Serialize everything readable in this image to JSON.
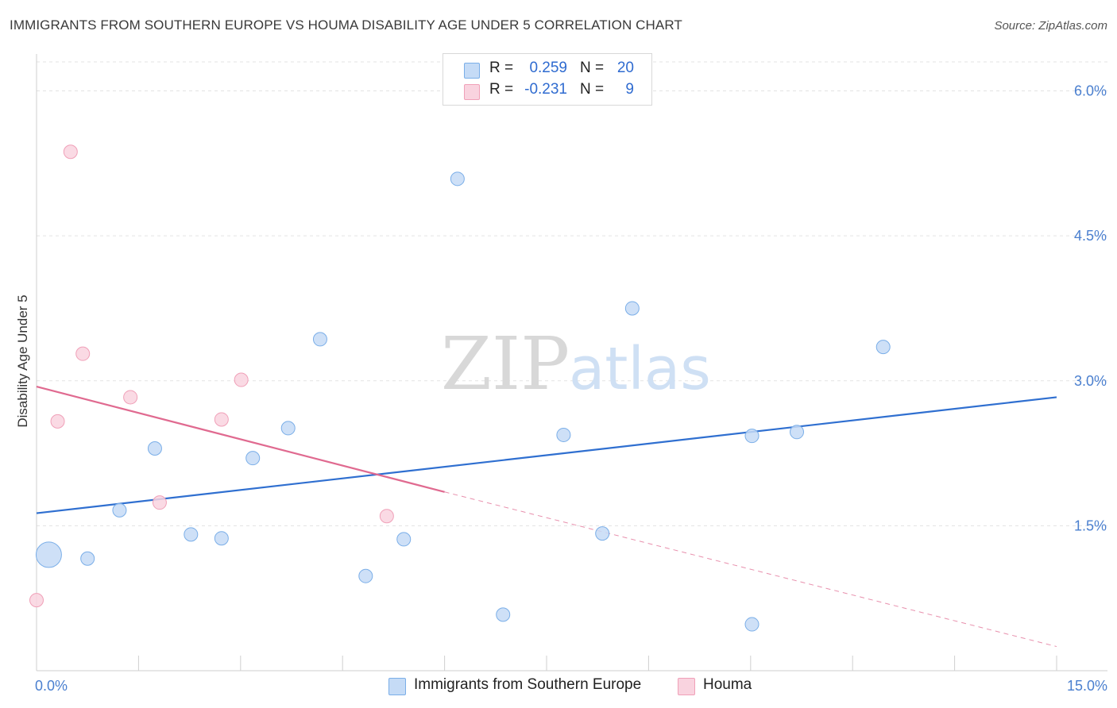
{
  "title": "IMMIGRANTS FROM SOUTHERN EUROPE VS HOUMA DISABILITY AGE UNDER 5 CORRELATION CHART",
  "source": "Source: ZipAtlas.com",
  "watermark": {
    "zip": "ZIP",
    "atlas": "atlas"
  },
  "legend": {
    "r_label": "R =",
    "n_label": "N =",
    "rows": [
      {
        "series": "Immigrants from Southern Europe",
        "r": "0.259",
        "n": "20"
      },
      {
        "series": "Houma",
        "r": "-0.231",
        "n": "9"
      }
    ]
  },
  "chart_data": {
    "type": "scatter",
    "title": "IMMIGRANTS FROM SOUTHERN EUROPE VS HOUMA DISABILITY AGE UNDER 5 CORRELATION CHART",
    "xlabel": "",
    "ylabel": "Disability Age Under 5",
    "xlim": [
      0,
      15
    ],
    "ylim": [
      0,
      6.3
    ],
    "x_tick_labels": [
      {
        "value": 0,
        "label": "0.0%"
      },
      {
        "value": 15,
        "label": "15.0%"
      }
    ],
    "y_ticks": [
      {
        "value": 1.5,
        "label": "1.5%"
      },
      {
        "value": 3.0,
        "label": "3.0%"
      },
      {
        "value": 4.5,
        "label": "4.5%"
      },
      {
        "value": 6.0,
        "label": "6.0%"
      }
    ],
    "x_minor_ticks": [
      0,
      1.5,
      3.0,
      4.5,
      6.0,
      7.5,
      9.0,
      10.5,
      12.0,
      13.5,
      15.0
    ],
    "grid": true,
    "series": [
      {
        "name": "Immigrants from Southern Europe",
        "color": "#7aaee8",
        "fill": "#c5dbf6",
        "points": [
          {
            "x": 0.18,
            "y": 1.2,
            "size": "large"
          },
          {
            "x": 0.75,
            "y": 1.16
          },
          {
            "x": 1.22,
            "y": 1.66
          },
          {
            "x": 1.74,
            "y": 2.3
          },
          {
            "x": 2.27,
            "y": 1.41
          },
          {
            "x": 2.72,
            "y": 1.37
          },
          {
            "x": 3.18,
            "y": 2.2
          },
          {
            "x": 3.7,
            "y": 2.51
          },
          {
            "x": 4.17,
            "y": 3.43
          },
          {
            "x": 4.84,
            "y": 0.98
          },
          {
            "x": 5.4,
            "y": 1.36
          },
          {
            "x": 6.19,
            "y": 5.09
          },
          {
            "x": 6.86,
            "y": 0.58
          },
          {
            "x": 7.75,
            "y": 2.44
          },
          {
            "x": 8.32,
            "y": 1.42
          },
          {
            "x": 8.76,
            "y": 3.75
          },
          {
            "x": 10.52,
            "y": 2.43
          },
          {
            "x": 10.52,
            "y": 0.48
          },
          {
            "x": 11.18,
            "y": 2.47
          },
          {
            "x": 12.45,
            "y": 3.35
          }
        ],
        "trend": {
          "x0": 0,
          "y0": 1.63,
          "x1": 15,
          "y1": 2.83
        }
      },
      {
        "name": "Houma",
        "color": "#f0a0b8",
        "fill": "#f9d3df",
        "points": [
          {
            "x": 0.0,
            "y": 0.73
          },
          {
            "x": 0.31,
            "y": 2.58
          },
          {
            "x": 0.5,
            "y": 5.37
          },
          {
            "x": 0.68,
            "y": 3.28
          },
          {
            "x": 1.38,
            "y": 2.83
          },
          {
            "x": 1.81,
            "y": 1.74
          },
          {
            "x": 2.72,
            "y": 2.6
          },
          {
            "x": 3.01,
            "y": 3.01
          },
          {
            "x": 5.15,
            "y": 1.6
          }
        ],
        "trend": {
          "x0": 0,
          "y0": 2.94,
          "x1": 6.0,
          "y1": 1.85,
          "dash_to_x": 15,
          "dash_to_y": 0.25
        }
      }
    ]
  }
}
